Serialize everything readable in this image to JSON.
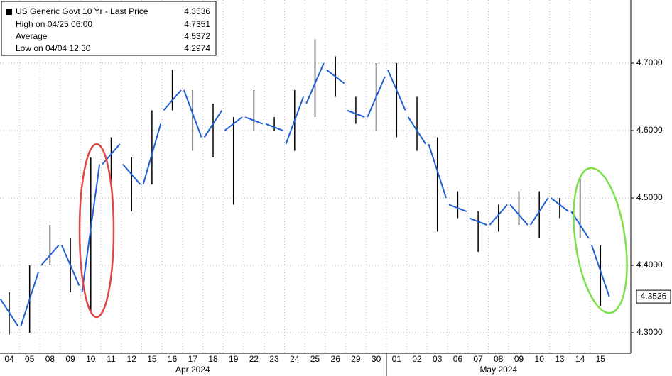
{
  "chart_data": {
    "type": "candlestick",
    "legend": {
      "items": [
        {
          "label": "US Generic Govt 10 Yr - Last Price",
          "value": 4.3536
        },
        {
          "label": "High on 04/25 06:00",
          "value": 4.7351
        },
        {
          "label": "Average",
          "value": 4.5372
        },
        {
          "label": "Low on 04/04 12:30",
          "value": 4.2974
        }
      ]
    },
    "categories": [
      "04",
      "05",
      "08",
      "09",
      "10",
      "11",
      "12",
      "15",
      "16",
      "17",
      "18",
      "19",
      "22",
      "23",
      "24",
      "25",
      "26",
      "29",
      "30",
      "01",
      "02",
      "03",
      "06",
      "07",
      "08",
      "09",
      "10",
      "13",
      "14",
      "15"
    ],
    "months": [
      {
        "label": "Apr 2024",
        "start": 0
      },
      {
        "label": "May 2024",
        "start": 19
      }
    ],
    "open": [
      4.35,
      4.31,
      4.4,
      4.43,
      4.36,
      4.55,
      4.55,
      4.52,
      4.63,
      4.66,
      4.59,
      4.6,
      4.62,
      4.61,
      4.58,
      4.64,
      4.69,
      4.63,
      4.62,
      4.69,
      4.62,
      4.58,
      4.49,
      4.47,
      4.46,
      4.49,
      4.46,
      4.5,
      4.48,
      4.43
    ],
    "high": [
      4.36,
      4.4,
      4.46,
      4.44,
      4.56,
      4.59,
      4.56,
      4.63,
      4.69,
      4.66,
      4.64,
      4.62,
      4.66,
      4.62,
      4.66,
      4.7351,
      4.71,
      4.65,
      4.7,
      4.7,
      4.65,
      4.59,
      4.51,
      4.48,
      4.49,
      4.51,
      4.51,
      4.5,
      4.53,
      4.43
    ],
    "low": [
      4.2974,
      4.3,
      4.4,
      4.36,
      4.33,
      4.52,
      4.48,
      4.52,
      4.63,
      4.57,
      4.56,
      4.49,
      4.6,
      4.6,
      4.57,
      4.62,
      4.65,
      4.61,
      4.6,
      4.59,
      4.57,
      4.45,
      4.47,
      4.42,
      4.45,
      4.46,
      4.44,
      4.47,
      4.44,
      4.34
    ],
    "close": [
      4.31,
      4.39,
      4.43,
      4.37,
      4.55,
      4.58,
      4.52,
      4.61,
      4.66,
      4.59,
      4.63,
      4.62,
      4.61,
      4.6,
      4.65,
      4.7,
      4.67,
      4.62,
      4.68,
      4.63,
      4.58,
      4.5,
      4.48,
      4.46,
      4.49,
      4.46,
      4.5,
      4.48,
      4.44,
      4.3536
    ],
    "color": "#1f5fd6",
    "ylim": [
      4.2695,
      4.7937
    ],
    "yticks": [
      {
        "value": 4.3,
        "label": "4.3000"
      },
      {
        "value": 4.4,
        "label": "4.4000"
      },
      {
        "value": 4.5,
        "label": "4.5000"
      },
      {
        "value": 4.6,
        "label": "4.6000"
      },
      {
        "value": 4.7,
        "label": "4.7000"
      }
    ],
    "grid": true
  }
}
